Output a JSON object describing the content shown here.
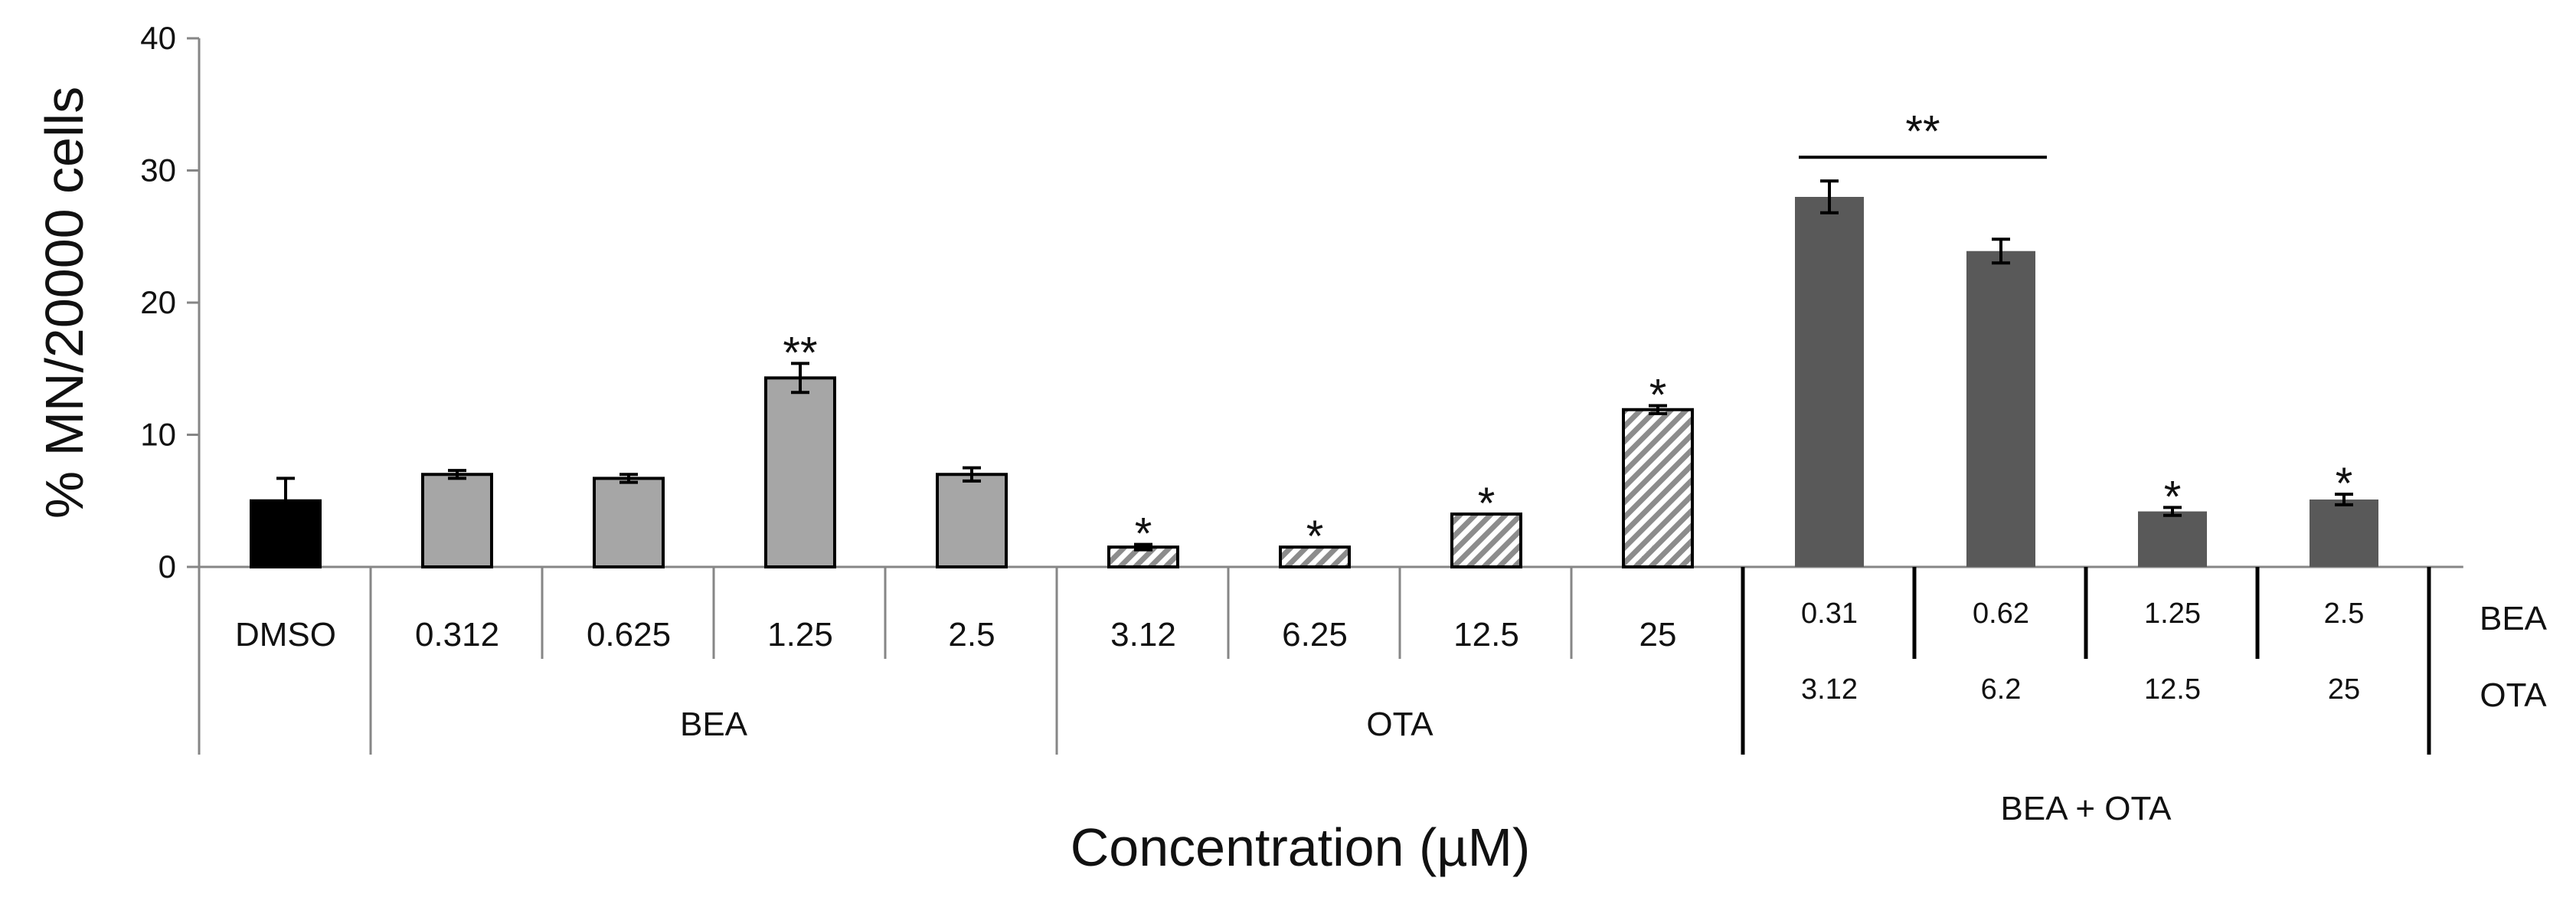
{
  "chart_data": {
    "type": "bar",
    "ylabel": "% MN/20000 cells",
    "xlabel": "Concentration (µM)",
    "ylim": [
      0,
      40
    ],
    "yticks": [
      "0",
      "10",
      "20",
      "30",
      "40"
    ],
    "colors": {
      "control": "#000000",
      "bea": "#a6a6a6",
      "ota_hatch": "#8c8c8c",
      "combo": "#595959",
      "axis": "#868686"
    },
    "bars": [
      {
        "label": "DMSO",
        "group": "DMSO",
        "value": 5.0,
        "error": 1.7,
        "sig": "",
        "style": "control"
      },
      {
        "label": "0.312",
        "group": "BEA",
        "value": 7.0,
        "error": 0.3,
        "sig": "",
        "style": "bea"
      },
      {
        "label": "0.625",
        "group": "BEA",
        "value": 6.7,
        "error": 0.3,
        "sig": "",
        "style": "bea"
      },
      {
        "label": "1.25",
        "group": "BEA",
        "value": 14.3,
        "error": 1.1,
        "sig": "**",
        "style": "bea"
      },
      {
        "label": "2.5",
        "group": "BEA",
        "value": 7.0,
        "error": 0.5,
        "sig": "",
        "style": "bea"
      },
      {
        "label": "3.12",
        "group": "OTA",
        "value": 1.5,
        "error": 0.2,
        "sig": "*",
        "style": "ota"
      },
      {
        "label": "6.25",
        "group": "OTA",
        "value": 1.5,
        "error": 0.0,
        "sig": "*",
        "style": "ota"
      },
      {
        "label": "12.5",
        "group": "OTA",
        "value": 4.0,
        "error": 0.0,
        "sig": "*",
        "style": "ota"
      },
      {
        "label": "25",
        "group": "OTA",
        "value": 11.9,
        "error": 0.3,
        "sig": "*",
        "style": "ota"
      },
      {
        "label_bea": "0.31",
        "label_ota": "3.12",
        "group": "BEA + OTA",
        "value": 28.0,
        "error": 1.2,
        "sig": "",
        "style": "combo"
      },
      {
        "label_bea": "0.62",
        "label_ota": "6.2",
        "group": "BEA + OTA",
        "value": 23.9,
        "error": 0.9,
        "sig": "",
        "style": "combo"
      },
      {
        "label_bea": "1.25",
        "label_ota": "12.5",
        "group": "BEA + OTA",
        "value": 4.2,
        "error": 0.3,
        "sig": "*",
        "style": "combo"
      },
      {
        "label_bea": "2.5",
        "label_ota": "25",
        "group": "BEA + OTA",
        "value": 5.1,
        "error": 0.4,
        "sig": "*",
        "style": "combo"
      }
    ],
    "groups": [
      "BEA",
      "OTA",
      "BEA + OTA"
    ],
    "row_labels": [
      "BEA",
      "OTA"
    ],
    "bracket": {
      "from_bar": 9,
      "to_bar": 10,
      "label": "**"
    }
  }
}
